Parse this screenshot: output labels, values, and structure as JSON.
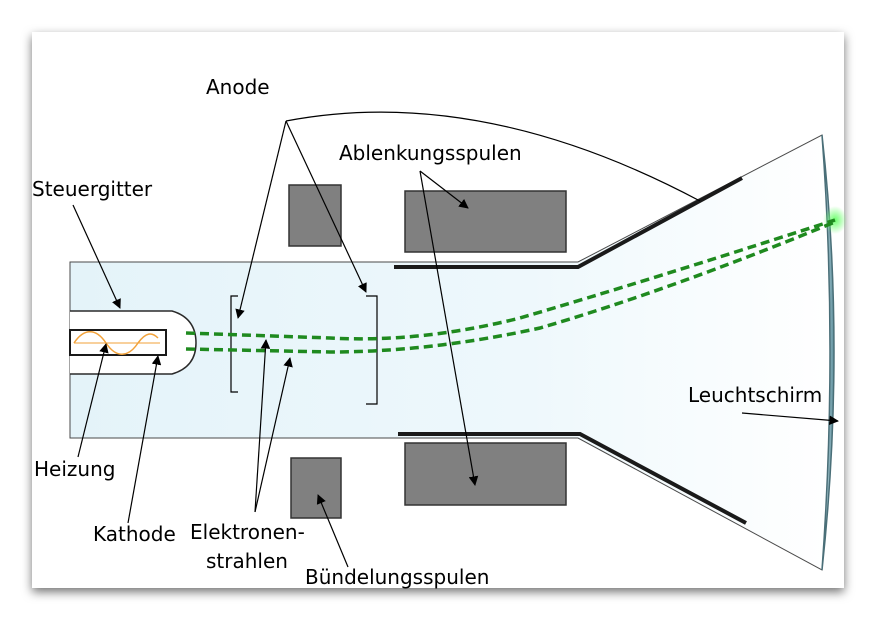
{
  "labels": {
    "anode": "Anode",
    "deflection_coils": "Ablenkungsspulen",
    "control_grid": "Steuergitter",
    "screen": "Leuchtschirm",
    "heater": "Heizung",
    "cathode": "Kathode",
    "electron_beams_line1": "Elektronen-",
    "electron_beams_line2": "strahlen",
    "focusing_coils": "Bündelungsspulen"
  },
  "colors": {
    "tube_fill": "#e8f6fb",
    "coil_fill": "#808080",
    "beam": "#1f8a1f",
    "heater_wave": "#f2a23a",
    "screen_glow": "#47e447",
    "screen_edge": "#5f8f9b"
  }
}
